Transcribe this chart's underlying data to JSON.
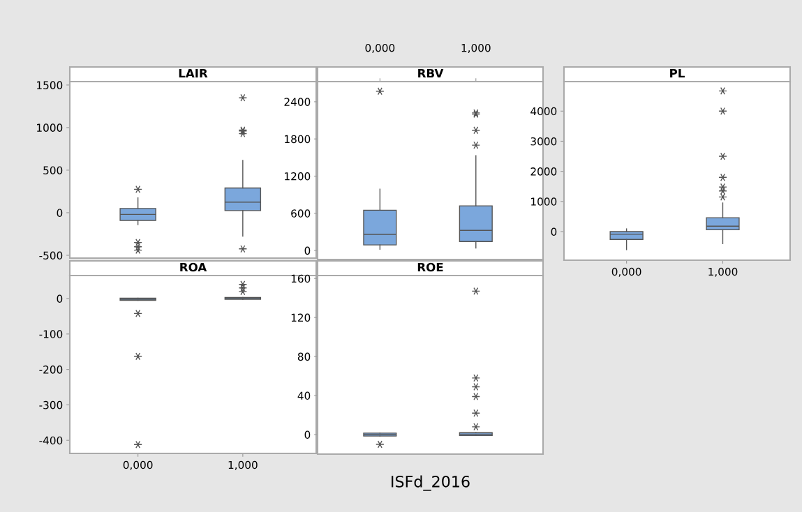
{
  "chart_data": [
    {
      "type": "box",
      "title": "LAIR",
      "categories": [
        "0,000",
        "1,000"
      ],
      "color": "#7ba7dc",
      "ylim": [
        -533,
        1540
      ],
      "yticks": [
        -500,
        0,
        500,
        1000,
        1500
      ],
      "tick_labels": "y",
      "grid": false,
      "boxes": [
        {
          "low": -140,
          "q1": -90,
          "median": -20,
          "q3": 50,
          "high": 175,
          "outliers": [
            275,
            -350,
            -400,
            -440
          ]
        },
        {
          "low": -275,
          "q1": 25,
          "median": 125,
          "q3": 290,
          "high": 615,
          "outliers": [
            1350,
            970,
            960,
            930,
            -425
          ]
        }
      ]
    },
    {
      "type": "box",
      "title": "RBV",
      "categories": [
        "0,000",
        "1,000"
      ],
      "color": "#7ba7dc",
      "ylim": [
        -145,
        2725
      ],
      "yticks": [
        0,
        600,
        1200,
        1800,
        2400
      ],
      "grid": false,
      "boxes": [
        {
          "low": 20,
          "q1": 90,
          "median": 260,
          "q3": 650,
          "high": 990,
          "outliers": [
            2570
          ]
        },
        {
          "low": 40,
          "q1": 145,
          "median": 325,
          "q3": 720,
          "high": 1530,
          "outliers": [
            2220,
            2200,
            1940,
            1700
          ]
        }
      ]
    },
    {
      "type": "box",
      "title": "PL",
      "categories": [
        "0,000",
        "1,000"
      ],
      "color": "#7ba7dc",
      "ylim": [
        -950,
        4980
      ],
      "yticks": [
        0,
        1000,
        2000,
        3000,
        4000
      ],
      "grid": false,
      "boxes": [
        {
          "low": -600,
          "q1": -260,
          "median": -90,
          "q3": 0,
          "high": 90
        },
        {
          "low": -400,
          "q1": 60,
          "median": 180,
          "q3": 460,
          "high": 950,
          "outliers": [
            4670,
            4000,
            2500,
            1800,
            1480,
            1350,
            1150
          ]
        }
      ]
    },
    {
      "type": "box",
      "title": "ROA",
      "categories": [
        "0,000",
        "1,000"
      ],
      "color": "#7ba7dc",
      "ylim": [
        -437,
        65
      ],
      "yticks": [
        -400,
        -300,
        -200,
        -100,
        0
      ],
      "grid": false,
      "boxes": [
        {
          "low": -5,
          "q1": -5,
          "median": -2,
          "q3": 1,
          "high": 1,
          "outliers": [
            -42,
            -163,
            -412
          ]
        },
        {
          "low": -2,
          "q1": -2,
          "median": 0,
          "q3": 3,
          "high": 3,
          "outliers": [
            40,
            30,
            20
          ]
        }
      ]
    },
    {
      "type": "box",
      "title": "ROE",
      "xlabel": "ISFd_2016",
      "categories": [
        "0,000",
        "1,000"
      ],
      "color": "#7ba7dc",
      "ylim": [
        -20,
        163
      ],
      "yticks": [
        0,
        40,
        80,
        120,
        160
      ],
      "tick_labels": "y",
      "grid": false,
      "boxes": [
        {
          "low": -1.5,
          "q1": -1.5,
          "median": 0,
          "q3": 1.5,
          "high": 1.5,
          "outliers": [
            -10
          ]
        },
        {
          "low": -1,
          "q1": -1,
          "median": 0.5,
          "q3": 2,
          "high": 2,
          "outliers": [
            147,
            58,
            49,
            39,
            22,
            8
          ]
        }
      ]
    }
  ]
}
